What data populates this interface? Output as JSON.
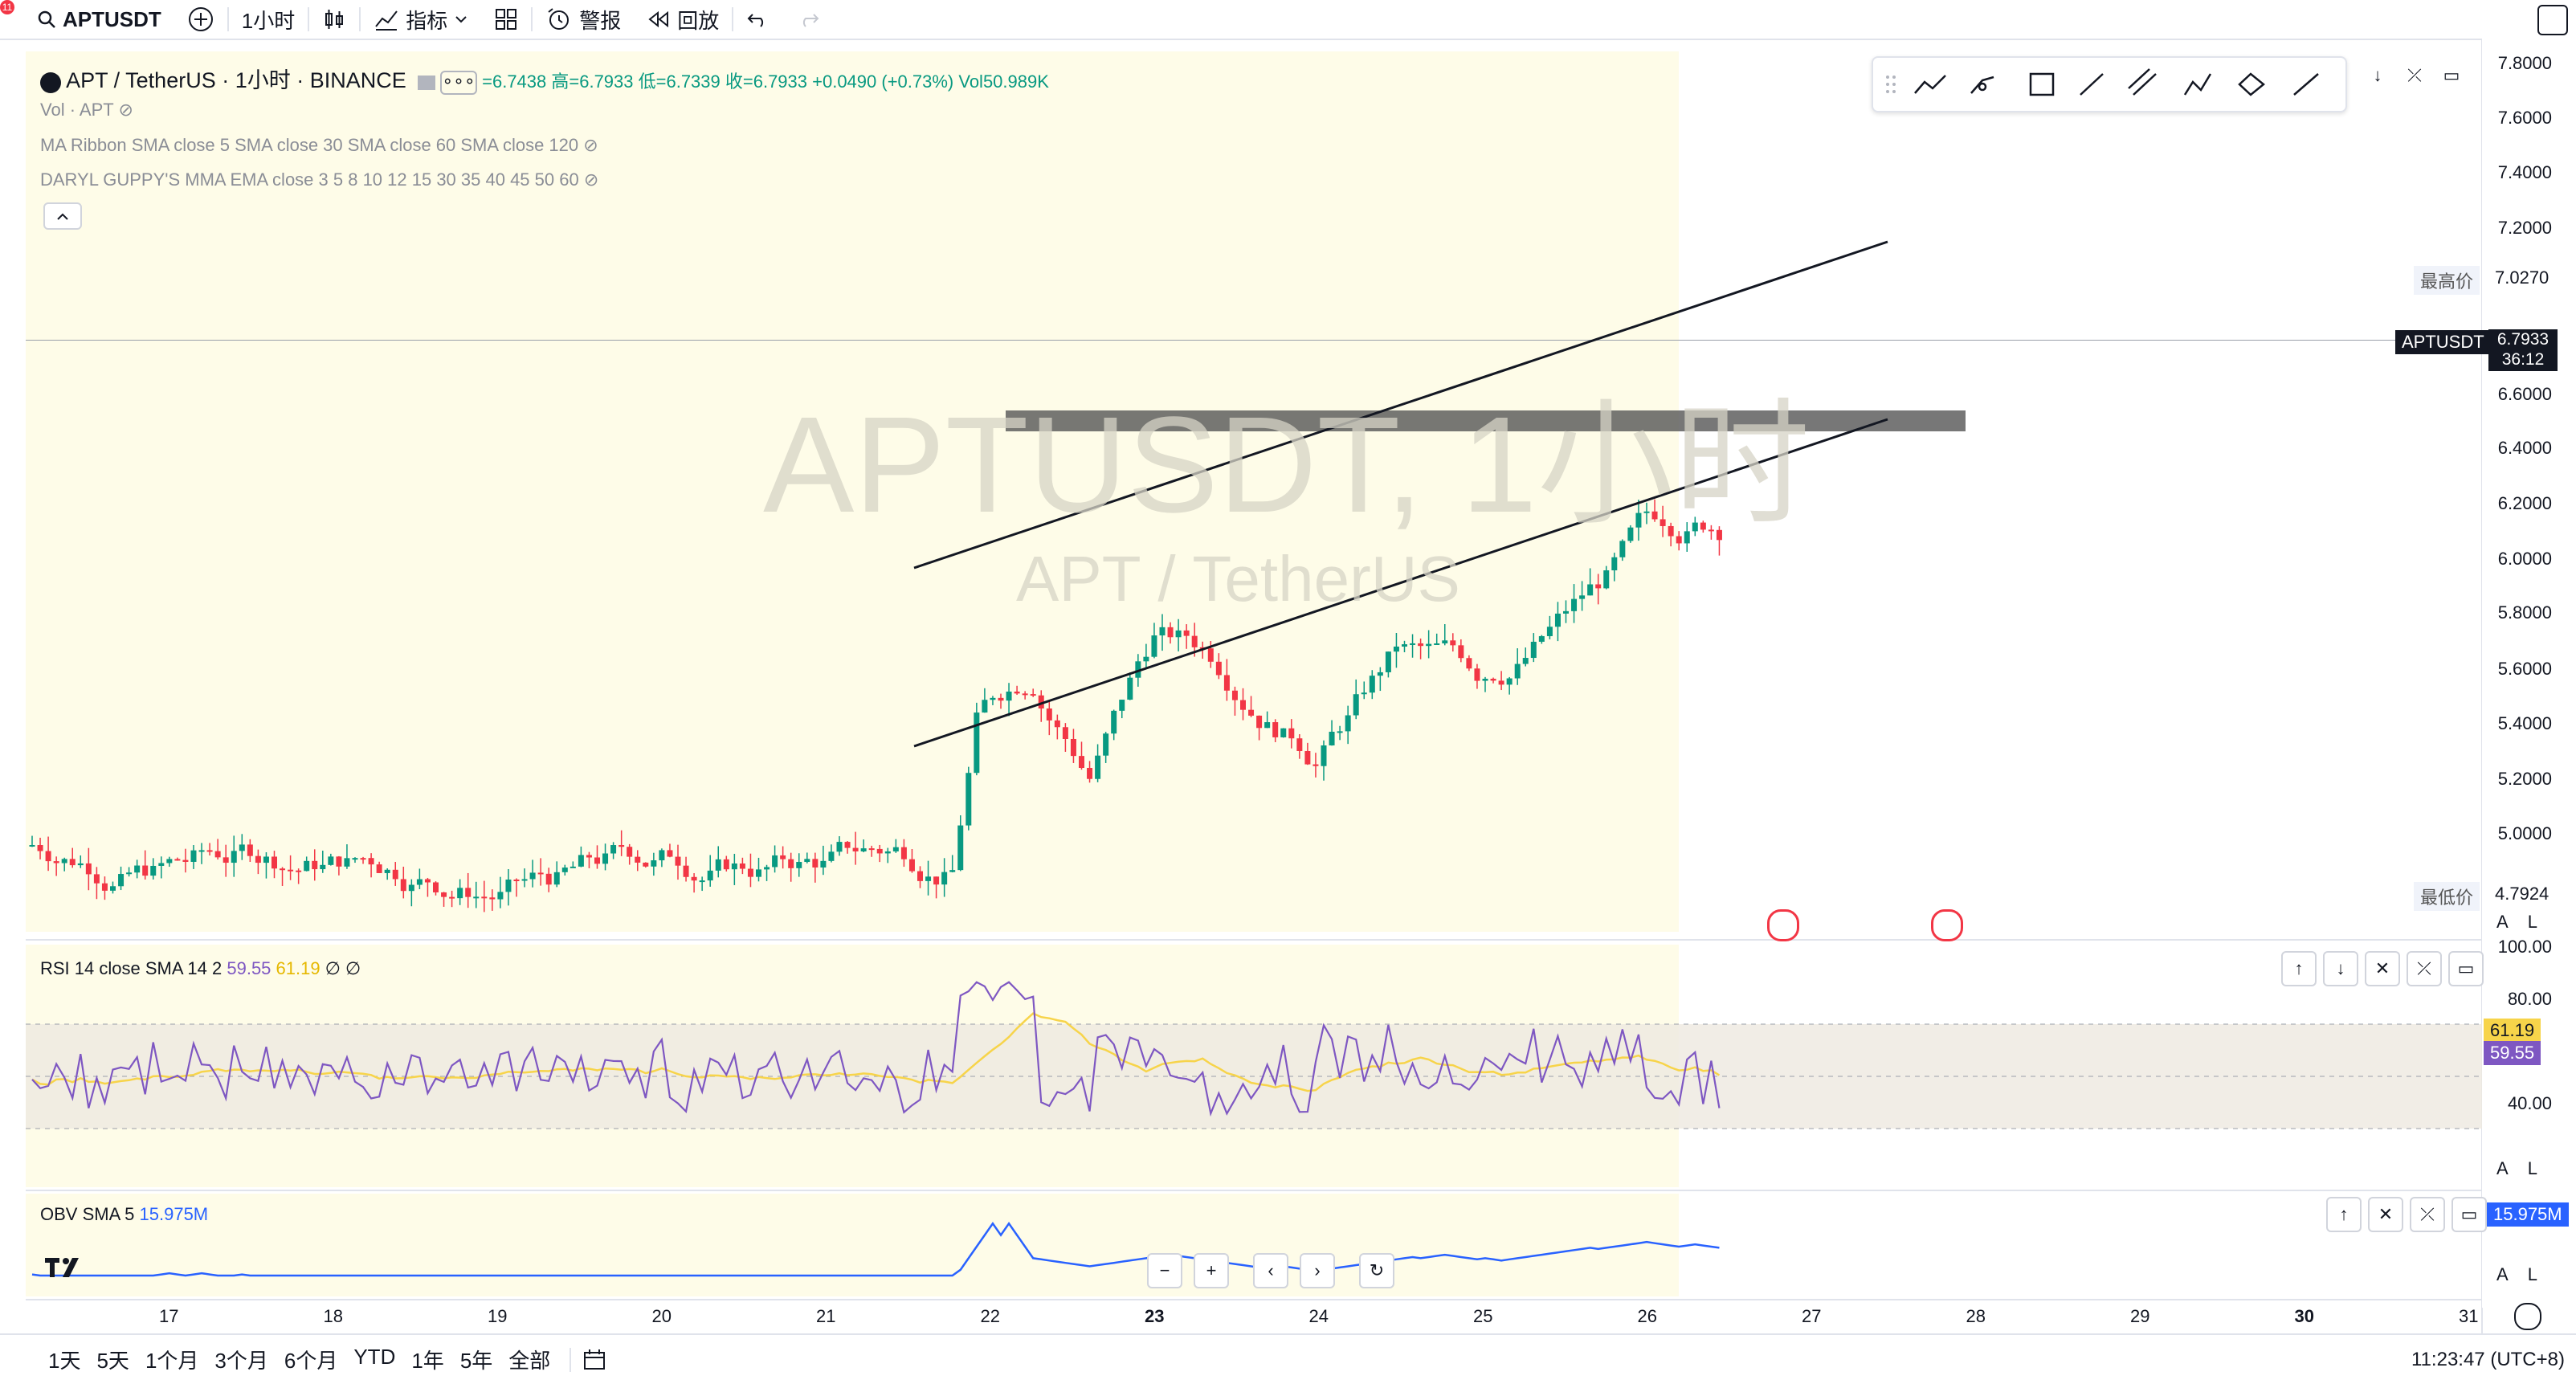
{
  "toolbar": {
    "symbol": "APTUSDT",
    "interval": "1小时",
    "indicators": "指标",
    "alert": "警报",
    "replay": "回放",
    "notification_badge": "11"
  },
  "legend": {
    "title": "APT / TetherUS · 1小时 · BINANCE",
    "ohlc": "=6.7438 高=6.7933 低=6.7339 收=6.7933 +0.0490 (+0.73%) Vol50.989K",
    "vol": "Vol · APT",
    "ma_ribbon": "MA Ribbon SMA close 5 SMA close 30 SMA close 60 SMA close 120",
    "guppy": "DARYL GUPPY'S MMA EMA close 3 5 8 10 12 15 30 35 40 45 50 60"
  },
  "watermark": {
    "symbol": "APTUSDT, 1小时",
    "name": "APT / TetherUS"
  },
  "price_axis": {
    "ticks": [
      "7.8000",
      "7.6000",
      "7.4000",
      "7.2000",
      "7.0270",
      "6.7933",
      "6.6000",
      "6.4000",
      "6.2000",
      "6.0000",
      "5.8000",
      "5.6000",
      "5.4000",
      "5.2000",
      "5.0000",
      "4.7924"
    ],
    "high_label": "最高价",
    "high_value": "7.0270",
    "low_label": "最低价",
    "low_value": "4.7924",
    "last_symbol": "APTUSDT",
    "last_price": "6.7933",
    "countdown": "36:12"
  },
  "rsi": {
    "label": "RSI 14 close SMA 14 2",
    "value": "59.55",
    "sma": "61.19",
    "nulls": "∅ ∅",
    "ticks": [
      "100.00",
      "80.00",
      "40.00"
    ],
    "badge_sma": "61.19",
    "badge_value": "59.55"
  },
  "obv": {
    "label": "OBV SMA 5",
    "value": "15.975M",
    "badge": "15.975M"
  },
  "dates": [
    "17",
    "18",
    "19",
    "20",
    "21",
    "22",
    "23",
    "24",
    "25",
    "26",
    "27",
    "28",
    "29",
    "30",
    "31"
  ],
  "bottom": {
    "ranges": [
      "1天",
      "5天",
      "1个月",
      "3个月",
      "6个月",
      "YTD",
      "1年",
      "5年",
      "全部"
    ],
    "clock": "11:23:47 (UTC+8)"
  },
  "scale_buttons": {
    "auto": "A",
    "log": "L"
  },
  "colors": {
    "up": "#089981",
    "down": "#f23645",
    "rsi": "#7e57c2",
    "rsi_sma": "#f7d44a",
    "obv": "#2962ff",
    "panel": "#fefce8"
  },
  "chart_data": {
    "type": "candlestick",
    "symbol": "APTUSDT",
    "interval": "1小时",
    "ylim": [
      4.7,
      7.85
    ],
    "last_close": 6.7933,
    "high": 7.027,
    "low": 4.7924
  }
}
